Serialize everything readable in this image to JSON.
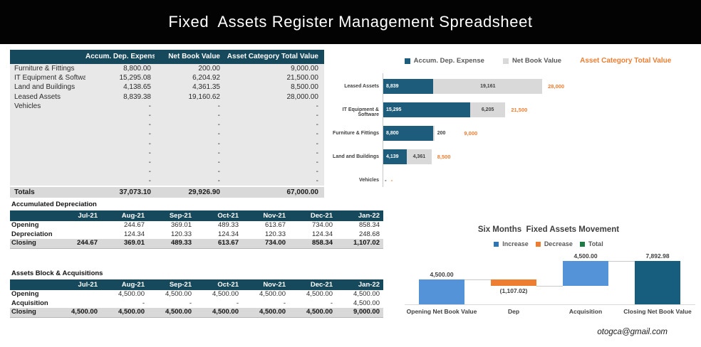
{
  "banner": {
    "title": "Fixed  Assets Register Management Spreadsheet"
  },
  "asset_table": {
    "columns": [
      "",
      "Accum. Dep. Expense",
      "Net Book Value",
      "Asset Category Total Value"
    ],
    "rows": [
      {
        "label": "Furniture & Fittings",
        "values": [
          "8,800.00",
          "200.00",
          "9,000.00"
        ]
      },
      {
        "label": "IT Equipment & Softwar",
        "values": [
          "15,295.08",
          "6,204.92",
          "21,500.00"
        ]
      },
      {
        "label": "Land and Buildings",
        "values": [
          "4,138.65",
          "4,361.35",
          "8,500.00"
        ]
      },
      {
        "label": "Leased Assets",
        "values": [
          "8,839.38",
          "19,160.62",
          "28,000.00"
        ]
      },
      {
        "label": "Vehicles",
        "values": [
          "-",
          "-",
          "-"
        ]
      },
      {
        "label": "",
        "values": [
          "-",
          "-",
          "-"
        ]
      },
      {
        "label": "",
        "values": [
          "-",
          "-",
          "-"
        ]
      },
      {
        "label": "",
        "values": [
          "-",
          "-",
          "-"
        ]
      },
      {
        "label": "",
        "values": [
          "-",
          "-",
          "-"
        ]
      },
      {
        "label": "",
        "values": [
          "-",
          "-",
          "-"
        ]
      },
      {
        "label": "",
        "values": [
          "-",
          "-",
          "-"
        ]
      },
      {
        "label": "",
        "values": [
          "-",
          "-",
          "-"
        ]
      },
      {
        "label": "",
        "values": [
          "-",
          "-",
          "-"
        ]
      }
    ],
    "totals": {
      "label": "Totals",
      "values": [
        "37,073.10",
        "29,926.90",
        "67,000.00"
      ]
    }
  },
  "accumulated_depreciation": {
    "section_label": "Accumulated Depreciation",
    "columns": [
      "",
      "Jul-21",
      "Aug-21",
      "Sep-21",
      "Oct-21",
      "Nov-21",
      "Dec-21",
      "Jan-22"
    ],
    "rows": [
      {
        "label": "Opening",
        "emphasis": false,
        "values": [
          "",
          "244.67",
          "369.01",
          "489.33",
          "613.67",
          "734.00",
          "858.34"
        ]
      },
      {
        "label": "Depreciation",
        "emphasis": false,
        "values": [
          "",
          "124.34",
          "120.33",
          "124.34",
          "120.33",
          "124.34",
          "248.68"
        ]
      },
      {
        "label": "Closing",
        "emphasis": true,
        "values": [
          "244.67",
          "369.01",
          "489.33",
          "613.67",
          "734.00",
          "858.34",
          "1,107.02"
        ]
      }
    ]
  },
  "assets_block": {
    "section_label": "Assets Block & Acquisitions",
    "columns": [
      "",
      "Jul-21",
      "Aug-21",
      "Sep-21",
      "Oct-21",
      "Nov-21",
      "Dec-21",
      "Jan-22"
    ],
    "rows": [
      {
        "label": "Opening",
        "emphasis": false,
        "values": [
          "",
          "4,500.00",
          "4,500.00",
          "4,500.00",
          "4,500.00",
          "4,500.00",
          "4,500.00"
        ]
      },
      {
        "label": "Acquisition",
        "emphasis": false,
        "values": [
          "",
          "-",
          "-",
          "-",
          "-",
          "-",
          "4,500.00"
        ]
      },
      {
        "label": "Closing",
        "emphasis": true,
        "values": [
          "4,500.00",
          "4,500.00",
          "4,500.00",
          "4,500.00",
          "4,500.00",
          "4,500.00",
          "9,000.00"
        ]
      }
    ]
  },
  "chart_data": [
    {
      "type": "bar",
      "orientation": "horizontal",
      "stacked": true,
      "title": "",
      "categories": [
        "Leased Assets",
        "IT Equipment & Software",
        "Furniture & Fittings",
        "Land and Buildings",
        "Vehicles"
      ],
      "series": [
        {
          "name": "Accum. Dep. Expense",
          "color": "#1E5C7B",
          "values": [
            8839,
            15295,
            8800,
            4139,
            null
          ],
          "labels": [
            "8,839",
            "15,295",
            "8,800",
            "4,139",
            "-"
          ]
        },
        {
          "name": "Net Book Value",
          "color": "#D9D9D9",
          "values": [
            19161,
            6205,
            200,
            4361,
            null
          ],
          "labels": [
            "19,161",
            "6,205",
            "200",
            "4,361",
            "-"
          ]
        }
      ],
      "totals": {
        "name": "Asset Category Total Value",
        "color": "#ED7D31",
        "values": [
          28000,
          21500,
          9000,
          8500,
          null
        ],
        "labels": [
          "28,000",
          "21,500",
          "9,000",
          "8,500",
          "-"
        ]
      },
      "xlim": [
        0,
        30000
      ],
      "grid": false,
      "legend_position": "top",
      "legend": [
        {
          "label": "Accum. Dep. Expense",
          "color": "#1E5C7B",
          "marker": true
        },
        {
          "label": "Net Book Value",
          "color": "#D9D9D9",
          "marker": true
        },
        {
          "label": "Asset Category Total Value",
          "color": "#ED7D31",
          "marker": false
        }
      ]
    },
    {
      "type": "bar",
      "subtype": "waterfall",
      "title": "Six Months  Fixed Assets Movement",
      "categories": [
        "Opening Net Book Value",
        "Dep",
        "Acquisition",
        "Closing Net Book Value"
      ],
      "values": [
        4500.0,
        -1107.02,
        4500.0,
        7892.98
      ],
      "value_labels": [
        "4,500.00",
        "(1,107.02)",
        "4,500.00",
        "7,892.98"
      ],
      "roles": [
        "increase",
        "decrease",
        "increase",
        "total"
      ],
      "colors": {
        "increase": "#5593D9",
        "decrease": "#ED7D31",
        "total": "#175E7E"
      },
      "ylim": [
        0,
        8000
      ],
      "grid": false,
      "legend_position": "top",
      "legend": [
        {
          "label": "Increase",
          "color": "#2E75B6"
        },
        {
          "label": "Decrease",
          "color": "#ED7D31"
        },
        {
          "label": "Total",
          "color": "#1E7A44"
        }
      ]
    }
  ],
  "footer": {
    "email": "otogca@gmail.com"
  }
}
